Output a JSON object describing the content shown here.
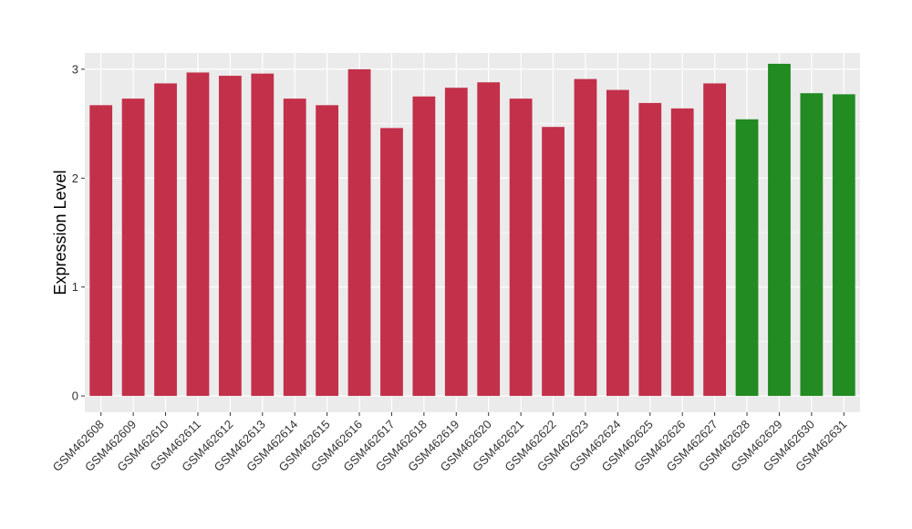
{
  "chart_data": {
    "type": "bar",
    "ylabel": "Expression Level",
    "xlabel": "",
    "ylim": [
      -0.15,
      3.15
    ],
    "yticks": [
      0,
      1,
      2,
      3
    ],
    "grid": true,
    "categories": [
      "GSM462608",
      "GSM462609",
      "GSM462610",
      "GSM462611",
      "GSM462612",
      "GSM462613",
      "GSM462614",
      "GSM462615",
      "GSM462616",
      "GSM462617",
      "GSM462618",
      "GSM462619",
      "GSM462620",
      "GSM462621",
      "GSM462622",
      "GSM462623",
      "GSM462624",
      "GSM462625",
      "GSM462626",
      "GSM462627",
      "GSM462628",
      "GSM462629",
      "GSM462630",
      "GSM462631"
    ],
    "values": [
      2.67,
      2.73,
      2.87,
      2.97,
      2.94,
      2.96,
      2.73,
      2.67,
      3.0,
      2.46,
      2.75,
      2.83,
      2.88,
      2.73,
      2.47,
      2.91,
      2.81,
      2.69,
      2.64,
      2.87,
      2.54,
      3.05,
      2.78,
      2.77
    ],
    "group_colors": [
      "#c3304a",
      "#c3304a",
      "#c3304a",
      "#c3304a",
      "#c3304a",
      "#c3304a",
      "#c3304a",
      "#c3304a",
      "#c3304a",
      "#c3304a",
      "#c3304a",
      "#c3304a",
      "#c3304a",
      "#c3304a",
      "#c3304a",
      "#c3304a",
      "#c3304a",
      "#c3304a",
      "#c3304a",
      "#c3304a",
      "#228b22",
      "#228b22",
      "#228b22",
      "#228b22"
    ],
    "panel_background": "#ebebeb",
    "grid_color": "#ffffff"
  }
}
